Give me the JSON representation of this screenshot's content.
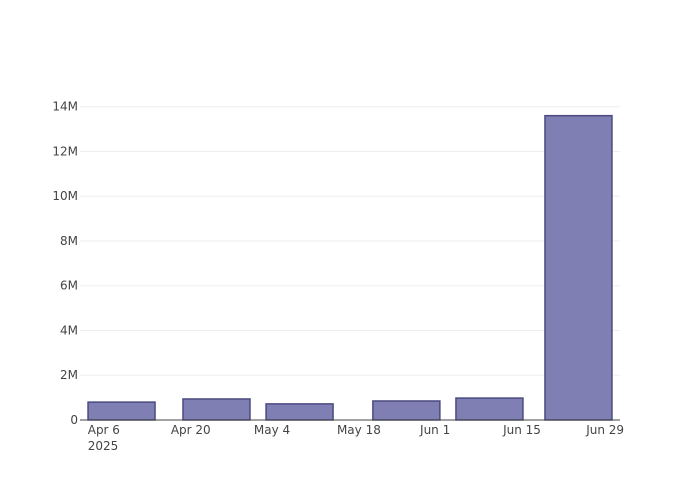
{
  "chart_data": {
    "type": "bar",
    "x": [
      "2025-04-09",
      "2025-04-25",
      "2025-05-09",
      "2025-05-27",
      "2025-06-10",
      "2025-06-25"
    ],
    "values": [
      800000,
      940000,
      720000,
      850000,
      980000,
      13600000
    ],
    "color": "#7f7fb3",
    "edge_color": "#4b4b80",
    "xlim": [
      "2025-04-02",
      "2025-07-02"
    ],
    "xticks": [
      {
        "value": "2025-04-06",
        "label": "Apr 6\n2025"
      },
      {
        "value": "2025-04-20",
        "label": "Apr 20"
      },
      {
        "value": "2025-05-04",
        "label": "May 4"
      },
      {
        "value": "2025-05-18",
        "label": "May 18"
      },
      {
        "value": "2025-06-01",
        "label": "Jun 1"
      },
      {
        "value": "2025-06-15",
        "label": "Jun 15"
      },
      {
        "value": "2025-06-29",
        "label": "Jun 29"
      }
    ],
    "ylim": [
      0,
      14300000
    ],
    "yticks": [
      0,
      {
        "value": 2000000,
        "label": "2M"
      },
      {
        "value": 4000000,
        "label": "4M"
      },
      {
        "value": 6000000,
        "label": "6M"
      },
      {
        "value": 8000000,
        "label": "8M"
      },
      {
        "value": 10000000,
        "label": "10M"
      },
      {
        "value": 12000000,
        "label": "12M"
      },
      {
        "value": 14000000,
        "label": "14M"
      }
    ],
    "grid": true
  }
}
